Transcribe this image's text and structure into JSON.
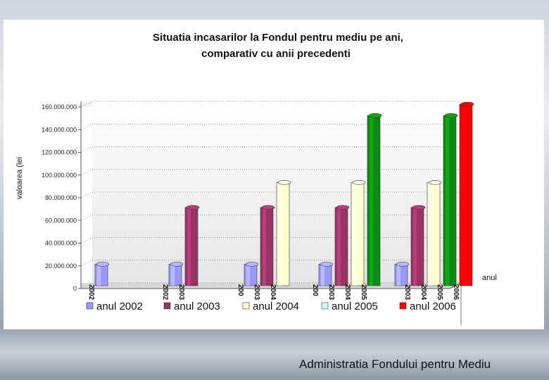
{
  "footer": {
    "organization": "Administratia Fondului pentru Mediu"
  },
  "chart_data": {
    "type": "bar",
    "title_lines": [
      "Situatia incasarilor la Fondul pentru mediu pe ani,",
      "comparativ cu anii precedenti"
    ],
    "xlabel": "anul",
    "ylabel": "valoarea (lei",
    "ylim": [
      0,
      160000000
    ],
    "yticks": [
      0,
      20000000,
      40000000,
      60000000,
      80000000,
      100000000,
      120000000,
      140000000,
      160000000
    ],
    "ytick_labels": [
      "0",
      "20.000.000",
      "40.000.000",
      "60.000.000",
      "80.000.000",
      "100.000.000",
      "120.000.000",
      "140.000.000",
      "160.000.000"
    ],
    "grid": true,
    "legend_position": "bottom",
    "groups": [
      {
        "bars": [
          {
            "series": 0,
            "value": 19000000,
            "label": "2002"
          }
        ]
      },
      {
        "bars": [
          {
            "series": 0,
            "value": 19000000,
            "label": "2002"
          },
          {
            "series": 1,
            "value": 69000000,
            "label": "2003"
          }
        ]
      },
      {
        "bars": [
          {
            "series": 0,
            "value": 19000000,
            "label": "200"
          },
          {
            "series": 1,
            "value": 69000000,
            "label": "2003"
          },
          {
            "series": 2,
            "value": 91000000,
            "label": "2004"
          }
        ]
      },
      {
        "bars": [
          {
            "series": 0,
            "value": 19000000,
            "label": "200"
          },
          {
            "series": 1,
            "value": 69000000,
            "label": "2003"
          },
          {
            "series": 2,
            "value": 91000000,
            "label": "2004"
          },
          {
            "series": 3,
            "value": 150000000,
            "label": "2005"
          }
        ]
      },
      {
        "bars": [
          {
            "series": 0,
            "value": 19000000,
            "label": ""
          },
          {
            "series": 1,
            "value": 69000000,
            "label": "2003"
          },
          {
            "series": 2,
            "value": 91000000,
            "label": "2004"
          },
          {
            "series": 3,
            "value": 150000000,
            "label": "2005"
          },
          {
            "series": 4,
            "value": 160000000,
            "label": "2006"
          }
        ]
      }
    ],
    "series": [
      {
        "name": "anul 2002",
        "color": "#9999ff"
      },
      {
        "name": "anul 2003",
        "color": "#993366"
      },
      {
        "name": "anul 2004",
        "color": "#ffffcc"
      },
      {
        "name": "anul 2005",
        "color": "#ccffff",
        "bar_color": "#0e8a12"
      },
      {
        "name": "anul 2006",
        "color": "#ff0000"
      }
    ]
  }
}
